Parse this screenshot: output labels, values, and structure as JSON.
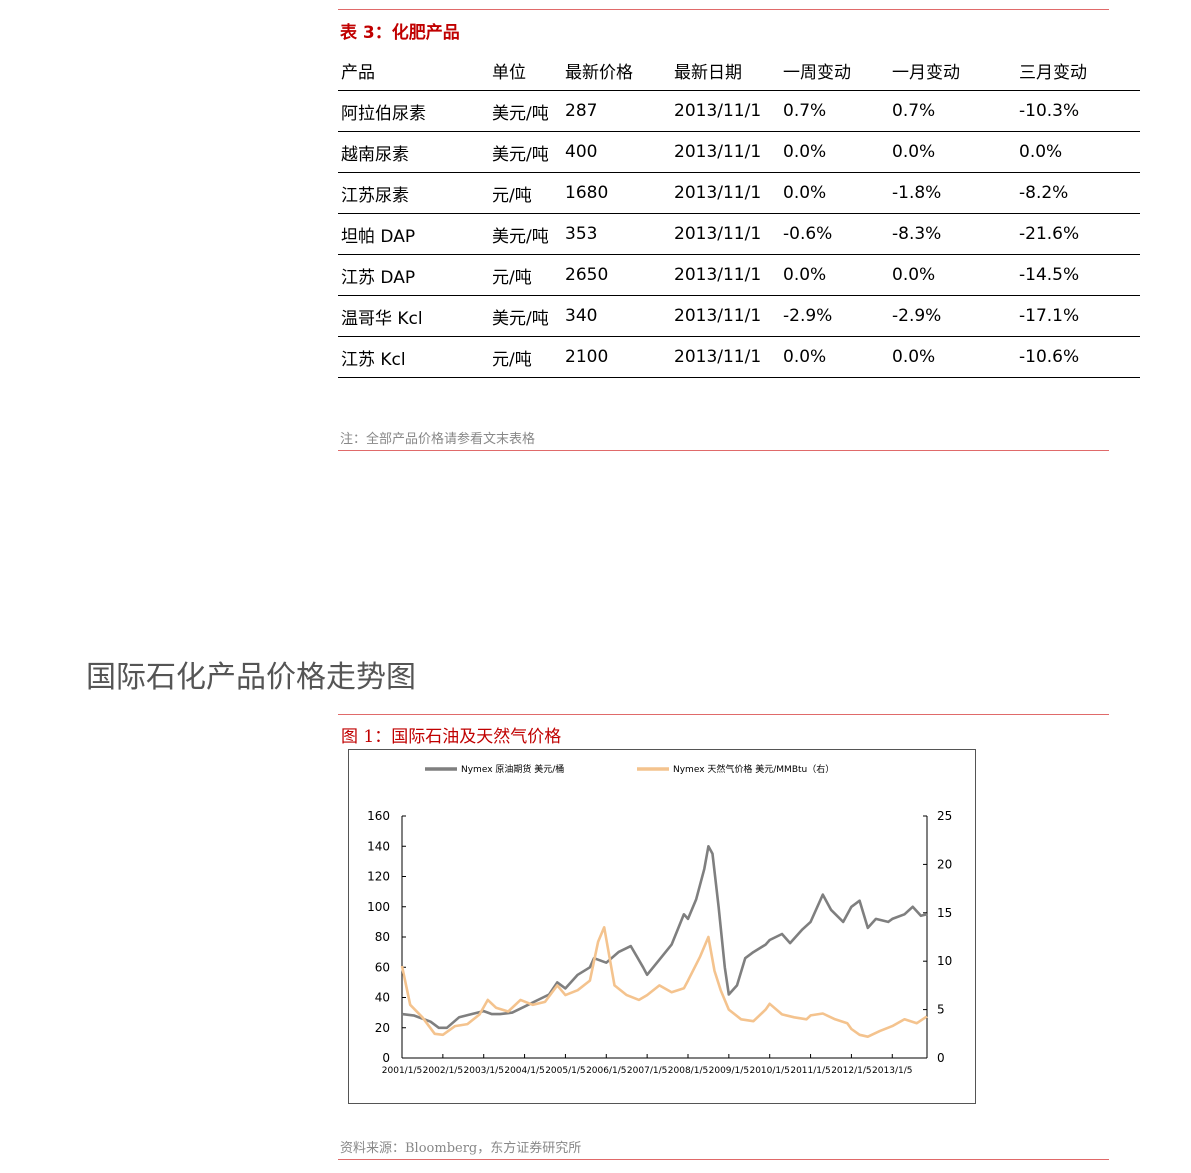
{
  "table": {
    "title": "表 3：化肥产品",
    "headers": [
      "产品",
      "单位",
      "最新价格",
      "最新日期",
      "一周变动",
      "一月变动",
      "三月变动"
    ],
    "rows": [
      [
        "阿拉伯尿素",
        "美元/吨",
        "287",
        "2013/11/1",
        "0.7%",
        "0.7%",
        "-10.3%"
      ],
      [
        "越南尿素",
        "美元/吨",
        "400",
        "2013/11/1",
        "0.0%",
        "0.0%",
        "0.0%"
      ],
      [
        "江苏尿素",
        "元/吨",
        "1680",
        "2013/11/1",
        "0.0%",
        "-1.8%",
        "-8.2%"
      ],
      [
        "坦帕 DAP",
        "美元/吨",
        "353",
        "2013/11/1",
        "-0.6%",
        "-8.3%",
        "-21.6%"
      ],
      [
        "江苏 DAP",
        "元/吨",
        "2650",
        "2013/11/1",
        "0.0%",
        "0.0%",
        "-14.5%"
      ],
      [
        "温哥华 Kcl",
        "美元/吨",
        "340",
        "2013/11/1",
        "-2.9%",
        "-2.9%",
        "-17.1%"
      ],
      [
        "江苏 Kcl",
        "元/吨",
        "2100",
        "2013/11/1",
        "0.0%",
        "0.0%",
        "-10.6%"
      ]
    ],
    "note": "注：全部产品价格请参看文末表格"
  },
  "section_heading": "国际石化产品价格走势图",
  "figure": {
    "title": "图 1：国际石油及天然气价格",
    "source": "资料来源：Bloomberg，东方证券研究所"
  },
  "chart_data": {
    "type": "line",
    "title": "",
    "x_tick_labels": [
      "2001/1/5",
      "2002/1/5",
      "2003/1/5",
      "2004/1/5",
      "2005/1/5",
      "2006/1/5",
      "2007/1/5",
      "2008/1/5",
      "2009/1/5",
      "2010/1/5",
      "2011/1/5",
      "2012/1/5",
      "2013/1/5"
    ],
    "y_left": {
      "ticks": [
        0,
        20,
        40,
        60,
        80,
        100,
        120,
        140,
        160
      ],
      "ylim": [
        0,
        160
      ]
    },
    "y_right": {
      "ticks": [
        0,
        5,
        10,
        15,
        20,
        25
      ],
      "ylim": [
        0,
        25
      ]
    },
    "legend_position": "top",
    "grid": false,
    "x_range": [
      2001.0,
      2013.85
    ],
    "series": [
      {
        "name": "Nymex 原油期货 美元/桶",
        "axis": "left",
        "color": "#7f7f7f",
        "x": [
          2001.0,
          2001.3,
          2001.7,
          2001.9,
          2002.1,
          2002.4,
          2002.7,
          2003.0,
          2003.2,
          2003.4,
          2003.7,
          2004.0,
          2004.3,
          2004.6,
          2004.8,
          2005.0,
          2005.3,
          2005.6,
          2005.7,
          2006.0,
          2006.3,
          2006.6,
          2006.9,
          2007.0,
          2007.3,
          2007.6,
          2007.9,
          2008.0,
          2008.2,
          2008.4,
          2008.5,
          2008.6,
          2008.75,
          2008.9,
          2009.0,
          2009.2,
          2009.4,
          2009.6,
          2009.9,
          2010.0,
          2010.3,
          2010.5,
          2010.8,
          2011.0,
          2011.3,
          2011.5,
          2011.8,
          2012.0,
          2012.2,
          2012.4,
          2012.6,
          2012.9,
          2013.0,
          2013.3,
          2013.5,
          2013.7,
          2013.85
        ],
        "y": [
          29,
          28,
          24,
          20,
          20,
          27,
          29,
          31,
          29,
          29,
          30,
          34,
          38,
          42,
          50,
          46,
          55,
          60,
          66,
          63,
          70,
          74,
          60,
          55,
          65,
          75,
          95,
          92,
          105,
          125,
          140,
          135,
          100,
          60,
          42,
          48,
          66,
          70,
          75,
          78,
          82,
          76,
          85,
          90,
          108,
          98,
          90,
          100,
          104,
          86,
          92,
          90,
          92,
          95,
          100,
          94,
          95
        ]
      },
      {
        "name": "Nymex 天然气价格 美元/MMBtu（右）",
        "axis": "right",
        "color": "#f4c38e",
        "x": [
          2001.0,
          2001.2,
          2001.5,
          2001.8,
          2002.0,
          2002.3,
          2002.6,
          2002.9,
          2003.1,
          2003.3,
          2003.6,
          2003.9,
          2004.2,
          2004.5,
          2004.8,
          2005.0,
          2005.3,
          2005.6,
          2005.8,
          2005.95,
          2006.2,
          2006.5,
          2006.8,
          2007.0,
          2007.3,
          2007.6,
          2007.9,
          2008.0,
          2008.3,
          2008.5,
          2008.65,
          2008.8,
          2009.0,
          2009.3,
          2009.6,
          2009.9,
          2010.0,
          2010.3,
          2010.6,
          2010.9,
          2011.0,
          2011.3,
          2011.6,
          2011.9,
          2012.0,
          2012.2,
          2012.4,
          2012.7,
          2013.0,
          2013.3,
          2013.6,
          2013.85
        ],
        "y": [
          9.5,
          5.5,
          4.2,
          2.5,
          2.4,
          3.3,
          3.5,
          4.5,
          6.0,
          5.2,
          4.8,
          6.0,
          5.5,
          5.8,
          7.5,
          6.5,
          7.0,
          8.0,
          12.0,
          13.5,
          7.5,
          6.5,
          6.0,
          6.5,
          7.5,
          6.8,
          7.2,
          8.0,
          10.5,
          12.5,
          9.0,
          7.0,
          5.0,
          4.0,
          3.8,
          5.0,
          5.6,
          4.5,
          4.2,
          4.0,
          4.4,
          4.6,
          4.0,
          3.6,
          3.0,
          2.4,
          2.2,
          2.8,
          3.3,
          4.0,
          3.6,
          4.3
        ]
      }
    ]
  }
}
